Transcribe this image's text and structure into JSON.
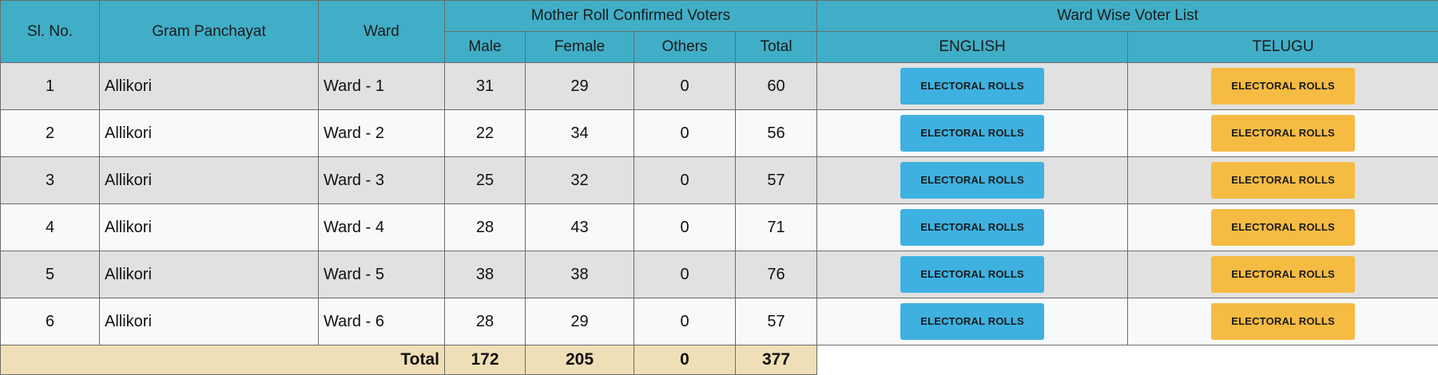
{
  "header": {
    "sl_no": "Sl. No.",
    "gram_panchayat": "Gram Panchayat",
    "ward": "Ward",
    "mother_roll": "Mother Roll Confirmed Voters",
    "ward_wise": "Ward Wise Voter List",
    "male": "Male",
    "female": "Female",
    "others": "Others",
    "total": "Total",
    "english": "ENGLISH",
    "telugu": "TELUGU"
  },
  "rows": [
    {
      "sl": "1",
      "gp": "Allikori",
      "ward": "Ward - 1",
      "male": "31",
      "female": "29",
      "others": "0",
      "total": "60",
      "en_btn": "ELECTORAL ROLLS",
      "te_btn": "ELECTORAL ROLLS"
    },
    {
      "sl": "2",
      "gp": "Allikori",
      "ward": "Ward - 2",
      "male": "22",
      "female": "34",
      "others": "0",
      "total": "56",
      "en_btn": "ELECTORAL ROLLS",
      "te_btn": "ELECTORAL ROLLS"
    },
    {
      "sl": "3",
      "gp": "Allikori",
      "ward": "Ward - 3",
      "male": "25",
      "female": "32",
      "others": "0",
      "total": "57",
      "en_btn": "ELECTORAL ROLLS",
      "te_btn": "ELECTORAL ROLLS"
    },
    {
      "sl": "4",
      "gp": "Allikori",
      "ward": "Ward - 4",
      "male": "28",
      "female": "43",
      "others": "0",
      "total": "71",
      "en_btn": "ELECTORAL ROLLS",
      "te_btn": "ELECTORAL ROLLS"
    },
    {
      "sl": "5",
      "gp": "Allikori",
      "ward": "Ward - 5",
      "male": "38",
      "female": "38",
      "others": "0",
      "total": "76",
      "en_btn": "ELECTORAL ROLLS",
      "te_btn": "ELECTORAL ROLLS"
    },
    {
      "sl": "6",
      "gp": "Allikori",
      "ward": "Ward - 6",
      "male": "28",
      "female": "29",
      "others": "0",
      "total": "57",
      "en_btn": "ELECTORAL ROLLS",
      "te_btn": "ELECTORAL ROLLS"
    }
  ],
  "totals": {
    "label": "Total",
    "male": "172",
    "female": "205",
    "others": "0",
    "total": "377"
  },
  "colors": {
    "header_bg": "#41aec7",
    "english_button": "#3eb1e0",
    "telugu_button": "#f6bb43",
    "total_row_bg": "#f0dfb6"
  }
}
